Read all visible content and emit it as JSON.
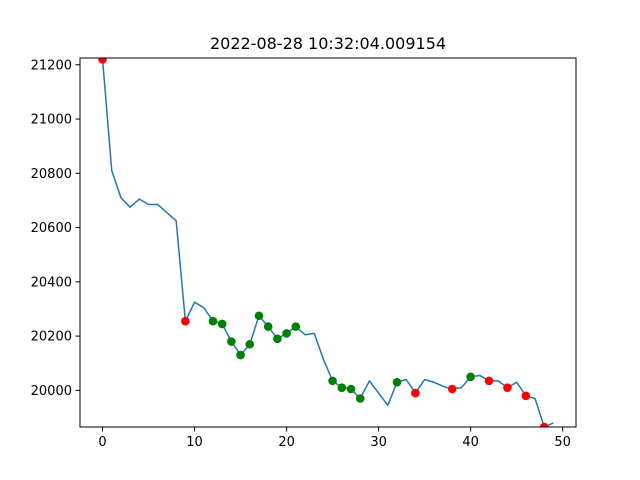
{
  "chart_data": {
    "type": "line",
    "title": "2022-08-28 10:32:04.009154",
    "xlabel": "",
    "ylabel": "",
    "xlim": [
      -2.45,
      51.45
    ],
    "ylim": [
      19865,
      21225
    ],
    "xticks": [
      0,
      10,
      20,
      30,
      40,
      50
    ],
    "yticks": [
      20000,
      20200,
      20400,
      20600,
      20800,
      21000,
      21200
    ],
    "grid": false,
    "line_color": "#1f77b4",
    "series": [
      {
        "x": [
          0,
          1,
          2,
          3,
          4,
          5,
          6,
          7,
          8,
          9,
          10,
          11,
          12,
          13,
          14,
          15,
          16,
          17,
          18,
          19,
          20,
          21,
          22,
          23,
          24,
          25,
          26,
          27,
          28,
          29,
          30,
          31,
          32,
          33,
          34,
          35,
          36,
          37,
          38,
          39,
          40,
          41,
          42,
          43,
          44,
          45,
          46,
          47,
          48,
          49
        ],
        "values": [
          21220,
          20810,
          20710,
          20675,
          20705,
          20685,
          20685,
          20655,
          20625,
          20255,
          20325,
          20305,
          20255,
          20245,
          20180,
          20130,
          20170,
          20275,
          20235,
          20190,
          20210,
          20235,
          20205,
          20210,
          20115,
          20035,
          20010,
          20005,
          19970,
          20035,
          19990,
          19945,
          20030,
          20040,
          19990,
          20040,
          20030,
          20015,
          20005,
          20010,
          20050,
          20055,
          20035,
          20035,
          20010,
          20030,
          19980,
          19970,
          19865,
          19880
        ]
      }
    ],
    "markers": [
      {
        "name": "red",
        "color": "#ff0000",
        "x": [
          0,
          9,
          34,
          38,
          42,
          44,
          46,
          48
        ],
        "y": [
          21220,
          20255,
          19990,
          20005,
          20035,
          20010,
          19980,
          19865
        ]
      },
      {
        "name": "green",
        "color": "#008000",
        "x": [
          12,
          13,
          14,
          15,
          16,
          17,
          18,
          19,
          20,
          21,
          25,
          26,
          27,
          28,
          32,
          40
        ],
        "y": [
          20255,
          20245,
          20180,
          20130,
          20170,
          20275,
          20235,
          20190,
          20210,
          20235,
          20035,
          20010,
          20005,
          19970,
          20030,
          20050
        ]
      }
    ]
  }
}
